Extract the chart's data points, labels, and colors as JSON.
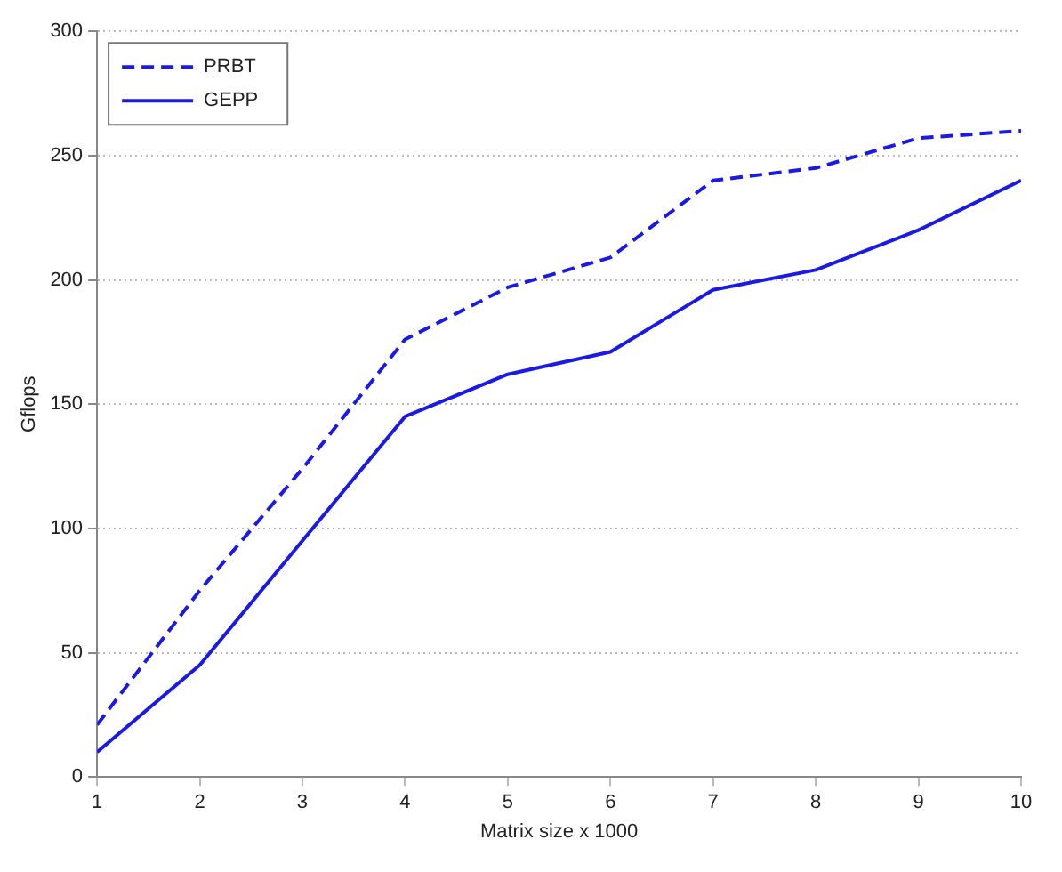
{
  "chart_data": {
    "type": "line",
    "xlabel": "Matrix size x 1000",
    "ylabel": "Gflops",
    "x": [
      1,
      2,
      3,
      4,
      5,
      6,
      7,
      8,
      9,
      10
    ],
    "series": [
      {
        "name": "PRBT",
        "color": "#1a1ae6",
        "line_style": "dashed",
        "values": [
          21,
          75,
          124,
          176,
          197,
          209,
          240,
          245,
          257,
          260
        ]
      },
      {
        "name": "GEPP",
        "color": "#1a1ae6",
        "line_style": "solid",
        "values": [
          10,
          45,
          95,
          145,
          162,
          171,
          196,
          204,
          220,
          240
        ]
      }
    ],
    "xlim": [
      1,
      10
    ],
    "xticks": [
      1,
      2,
      3,
      4,
      5,
      6,
      7,
      8,
      9,
      10
    ],
    "ylim": [
      0,
      300
    ],
    "yticks": [
      0,
      50,
      100,
      150,
      200,
      250,
      300
    ],
    "grid": "y",
    "legend": "top left",
    "marker": "none"
  }
}
